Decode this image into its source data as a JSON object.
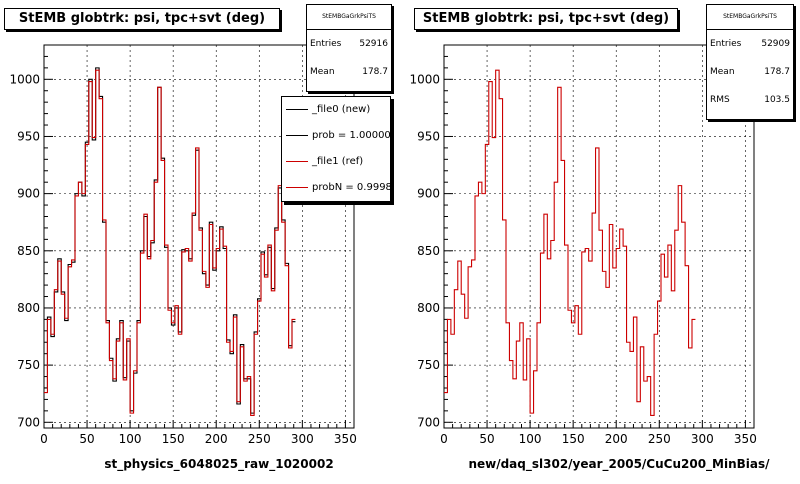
{
  "chart_data": [
    {
      "type": "line",
      "title": "StEMB globtrk: psi, tpc+svt (deg)",
      "xlabel": "st_physics_6048025_raw_1020002",
      "ylabel": "",
      "xlim": [
        0,
        360
      ],
      "ylim": [
        695,
        1030
      ],
      "x_ticks": [
        0,
        50,
        100,
        150,
        200,
        250,
        300,
        350
      ],
      "y_ticks": [
        700,
        750,
        800,
        850,
        900,
        950,
        1000
      ],
      "grid": true,
      "stats": {
        "name": "StEMBGaGrkPsiTS",
        "entries_label": "Entries",
        "entries": "52916",
        "mean_label": "Mean",
        "mean": "178.7"
      },
      "legend": {
        "placement": "top-right",
        "entries": [
          {
            "label": "_file0 (new)",
            "color": "#000000"
          },
          {
            "label": "prob = 1.000000",
            "color": "#000000"
          },
          {
            "label": "_file1 (ref)",
            "color": "#cc0000"
          },
          {
            "label": "probN = 0.99985",
            "color": "#cc0000"
          }
        ]
      },
      "bin_width": 4,
      "series": [
        {
          "name": "_file0 (new)",
          "color": "#000000",
          "values": [
            730,
            792,
            775,
            814,
            843,
            814,
            789,
            838,
            840,
            900,
            910,
            898,
            945,
            1000,
            947,
            1010,
            985,
            875,
            789,
            756,
            736,
            773,
            789,
            739,
            771,
            710,
            743,
            789,
            850,
            880,
            845,
            857,
            912,
            993,
            931,
            853,
            800,
            785,
            800,
            779,
            851,
            850,
            843,
            881,
            938,
            870,
            830,
            820,
            875,
            833,
            850,
            871,
            852,
            772,
            760,
            794,
            716,
            768,
            738,
            738,
            708,
            779,
            808,
            849,
            829,
            853,
            817,
            870,
            905,
            877,
            839,
            767,
            788
          ]
        },
        {
          "name": "_file1 (ref)",
          "color": "#cc0000",
          "values": [
            726,
            790,
            777,
            816,
            841,
            812,
            791,
            836,
            842,
            898,
            910,
            900,
            943,
            998,
            949,
            1008,
            983,
            877,
            787,
            754,
            738,
            771,
            787,
            737,
            773,
            708,
            745,
            787,
            848,
            882,
            843,
            859,
            910,
            993,
            929,
            855,
            798,
            787,
            802,
            777,
            849,
            852,
            841,
            883,
            940,
            868,
            832,
            818,
            873,
            835,
            852,
            869,
            854,
            770,
            762,
            792,
            718,
            766,
            736,
            740,
            706,
            777,
            806,
            847,
            827,
            855,
            815,
            868,
            907,
            875,
            837,
            765,
            790
          ]
        }
      ]
    },
    {
      "type": "line",
      "title": "StEMB globtrk: psi, tpc+svt (deg)",
      "xlabel": "new/daq_sl302/year_2005/CuCu200_MinBias/",
      "ylabel": "",
      "xlim": [
        0,
        360
      ],
      "ylim": [
        695,
        1030
      ],
      "x_ticks": [
        0,
        50,
        100,
        150,
        200,
        250,
        300,
        350
      ],
      "y_ticks": [
        700,
        750,
        800,
        850,
        900,
        950,
        1000
      ],
      "grid": true,
      "stats": {
        "name": "StEMBGaGrkPsiTS",
        "entries_label": "Entries",
        "entries": "52909",
        "mean_label": "Mean",
        "mean": "178.7",
        "rms_label": "RMS",
        "rms": "103.5"
      },
      "bin_width": 4,
      "series": [
        {
          "name": "ref",
          "color": "#cc0000",
          "values": [
            726,
            790,
            777,
            816,
            841,
            812,
            791,
            836,
            842,
            898,
            910,
            900,
            943,
            998,
            949,
            1008,
            983,
            877,
            787,
            754,
            738,
            771,
            787,
            737,
            773,
            708,
            745,
            787,
            848,
            882,
            843,
            859,
            910,
            993,
            929,
            855,
            798,
            787,
            802,
            777,
            849,
            852,
            841,
            883,
            940,
            868,
            832,
            818,
            873,
            835,
            852,
            869,
            854,
            770,
            762,
            792,
            718,
            766,
            736,
            740,
            706,
            777,
            806,
            847,
            827,
            855,
            815,
            868,
            907,
            875,
            837,
            765,
            790
          ]
        }
      ]
    }
  ]
}
